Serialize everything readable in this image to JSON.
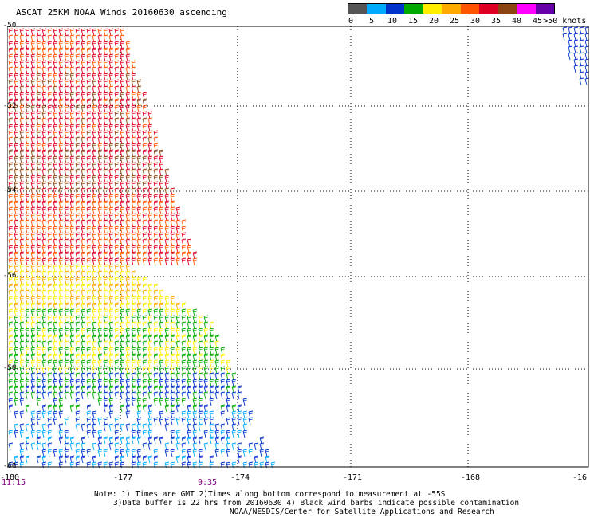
{
  "title": "ASCAT 25KM NOAA Winds 20160630 ascending",
  "legend": {
    "colors": [
      "#555555",
      "#00aaff",
      "#0033cc",
      "#00aa00",
      "#ffee00",
      "#ffaa00",
      "#ff5500",
      "#dd0022",
      "#8b4513",
      "#ff00ff",
      "#6600aa"
    ],
    "labels": [
      "0",
      "5",
      "10",
      "15",
      "20",
      "25",
      "30",
      "35",
      "40",
      "45",
      ">50 knots"
    ]
  },
  "axes": {
    "lon_labels": [
      "-180",
      "-177",
      "-174",
      "-171",
      "-168",
      "-16"
    ],
    "lat_labels": [
      "-50",
      "-52",
      "-54",
      "-56",
      "-58",
      "-60"
    ]
  },
  "times": [
    "11:15",
    "9:35"
  ],
  "notes": [
    "Note: 1) Times are GMT 2)Times along bottom correspond to measurement at -55S",
    "3)Data buffer is 22 hrs from 20160630 4) Black wind barbs indicate possible contamination",
    "NOAA/NESDIS/Center for Satellite Applications and Research"
  ]
}
